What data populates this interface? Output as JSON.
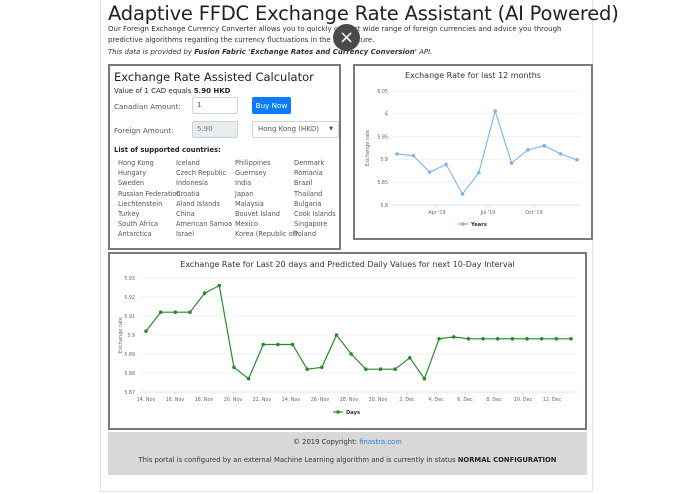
{
  "header": {
    "title": "Adaptive FFDC Exchange Rate Assistant (AI Powered)",
    "intro": "Our Foreign Exchange Currency Converter allows you to quickly convert wide range of foreign currencies and advice you through predictive algorithms regarding the currency fluctuations in the near future.",
    "source_prefix": "This data is provided by ",
    "source_provider": "Fusion Fabric 'Exchange Rates and Currency Conversion'",
    "source_suffix": " API.",
    "close_icon": "×"
  },
  "calculator": {
    "title": "Exchange Rate Assisted Calculator",
    "rate_prefix": "Value of 1 CAD equals ",
    "rate_value": "5.90 HKD",
    "canadian_label": "Canadian Amount:",
    "canadian_value": "1",
    "buy_button": "Buy Now",
    "foreign_label": "Foreign Amount:",
    "foreign_value": "5.90",
    "currency_selected": "Hong Kong (HKD)",
    "caret_icon": "▼",
    "countries_title": "List of supported countries:",
    "countries": [
      "Hong Kong",
      "Iceland",
      "Philippines",
      "Denmark",
      "Hungary",
      "Czech Republic",
      "Guernsey",
      "Romania",
      "Sweden",
      "Indonesia",
      "India",
      "Brazil",
      "Russian Federation",
      "Croatia",
      "Japan",
      "Thailand",
      "Liechtenstein",
      "Aland Islands",
      "Malaysia",
      "Bulgaria",
      "Turkey",
      "China",
      "Bouvet Island",
      "Cook Islands",
      "South Africa",
      "American Samoa",
      "Mexico",
      "Singapore",
      "Antarctica",
      "Israel",
      "Korea (Republic of)",
      "Poland"
    ]
  },
  "footer": {
    "copyright_prefix": "© 2019 Copyright: ",
    "copyright_link": "finastra.com",
    "status_prefix": "This portal is configured by an external Machine Learning algorithm and is currently in status ",
    "status_value": "NORMAL CONFIGURATION"
  },
  "colors": {
    "accent": "#0d7bff",
    "chart12_line": "#7cb5ec",
    "chart20_line": "#2a8a2a",
    "panel_border": "#7a7a7a",
    "footer_bg": "#d8d8d8"
  },
  "chart_data": [
    {
      "type": "line",
      "title": "Exchange Rate for last 12 months",
      "xlabel": "",
      "ylabel": "Exchange rate",
      "ylim": [
        5.8,
        6.05
      ],
      "yticks": [
        "5.8",
        "5.85",
        "5.9",
        "5.95",
        "6",
        "6.05"
      ],
      "xticks": [
        "Apr '19",
        "Jul '19",
        "Oct '19"
      ],
      "x": [
        "Jan '19",
        "Feb '19",
        "Mar '19",
        "Apr '19",
        "May '19",
        "Jun '19",
        "Jul '19",
        "Aug '19",
        "Sep '19",
        "Oct '19",
        "Nov '19",
        "Dec '19"
      ],
      "series": [
        {
          "name": "Years",
          "values": [
            5.912,
            5.908,
            5.872,
            5.889,
            5.824,
            5.871,
            6.006,
            5.892,
            5.921,
            5.93,
            5.912,
            5.899
          ]
        }
      ],
      "legend_position": "bottom",
      "grid": true
    },
    {
      "type": "line",
      "title": "Exchange Rate for Last 20 days and Predicted Daily Values for next 10-Day Interval",
      "xlabel": "",
      "ylabel": "Exchange rate",
      "ylim": [
        5.87,
        5.93
      ],
      "yticks": [
        "5.87",
        "5.88",
        "5.89",
        "5.9",
        "5.91",
        "5.92",
        "5.93"
      ],
      "xticks": [
        "14. Nov",
        "16. Nov",
        "18. Nov",
        "20. Nov",
        "22. Nov",
        "24. Nov",
        "26. Nov",
        "28. Nov",
        "30. Nov",
        "2. Dec",
        "4. Dec",
        "6. Dec",
        "8. Dec",
        "10. Dec",
        "12. Dec"
      ],
      "x": [
        "14. Nov",
        "15. Nov",
        "16. Nov",
        "17. Nov",
        "18. Nov",
        "19. Nov",
        "20. Nov",
        "21. Nov",
        "22. Nov",
        "23. Nov",
        "24. Nov",
        "25. Nov",
        "26. Nov",
        "27. Nov",
        "28. Nov",
        "29. Nov",
        "30. Nov",
        "1. Dec",
        "2. Dec",
        "3. Dec",
        "4. Dec",
        "5. Dec",
        "6. Dec",
        "7. Dec",
        "8. Dec",
        "9. Dec",
        "10. Dec",
        "11. Dec",
        "12. Dec",
        "13. Dec"
      ],
      "series": [
        {
          "name": "Days",
          "values": [
            5.902,
            5.912,
            5.912,
            5.912,
            5.922,
            5.926,
            5.883,
            5.877,
            5.895,
            5.895,
            5.895,
            5.882,
            5.883,
            5.9,
            5.89,
            5.882,
            5.882,
            5.882,
            5.888,
            5.877,
            5.898,
            5.899,
            5.898,
            5.898,
            5.898,
            5.898,
            5.898,
            5.898,
            5.898,
            5.898
          ]
        }
      ],
      "legend_position": "bottom",
      "grid": true
    }
  ]
}
